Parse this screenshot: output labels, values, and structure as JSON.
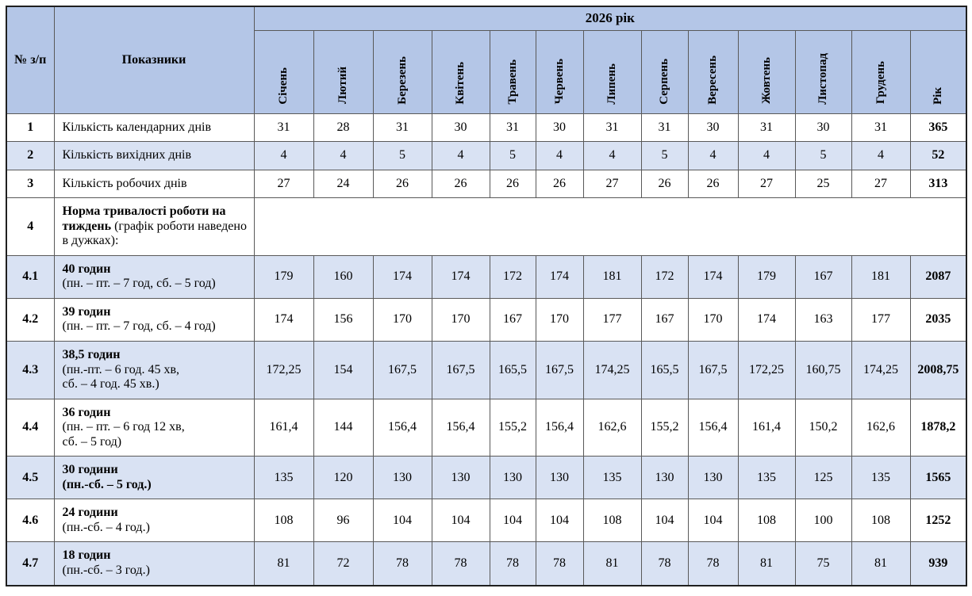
{
  "colors": {
    "header_bg": "#b4c6e7",
    "row_shade": "#d9e2f3",
    "border_color": "#595959",
    "outer_border": "#1f1f1f"
  },
  "header": {
    "num_col": "№ з/п",
    "indicators_col": "Показники",
    "year_group": "2026 рік",
    "months": [
      "Січень",
      "Лютий",
      "Березень",
      "Квітень",
      "Травень",
      "Червень",
      "Липень",
      "Серпень",
      "Вересень",
      "Жовтень",
      "Листопад",
      "Грудень"
    ],
    "year_total": "Рік"
  },
  "rows": [
    {
      "num": "1",
      "label_parts": [
        {
          "text": "Кількість календарних днів",
          "bold": false,
          "br": false
        }
      ],
      "values": [
        "31",
        "28",
        "31",
        "30",
        "31",
        "30",
        "31",
        "31",
        "30",
        "31",
        "30",
        "31"
      ],
      "total": "365",
      "shaded": false
    },
    {
      "num": "2",
      "label_parts": [
        {
          "text": "Кількість вихідних днів",
          "bold": false,
          "br": false
        }
      ],
      "values": [
        "4",
        "4",
        "5",
        "4",
        "5",
        "4",
        "4",
        "5",
        "4",
        "4",
        "5",
        "4"
      ],
      "total": "52",
      "shaded": true
    },
    {
      "num": "3",
      "label_parts": [
        {
          "text": "Кількість робочих днів",
          "bold": false,
          "br": false
        }
      ],
      "values": [
        "27",
        "24",
        "26",
        "26",
        "26",
        "26",
        "27",
        "26",
        "26",
        "27",
        "25",
        "27"
      ],
      "total": "313",
      "shaded": false
    },
    {
      "num": "4",
      "label_parts": [
        {
          "text": "Норма тривалості роботи на тиждень",
          "bold": true,
          "br": false
        },
        {
          "text": " (графік роботи наведено в дужках):",
          "bold": false,
          "br": false
        }
      ],
      "values": null,
      "total": null,
      "shaded": false
    },
    {
      "num": "4.1",
      "label_parts": [
        {
          "text": "40 годин",
          "bold": true,
          "br": false
        },
        {
          "text": "(пн. – пт. – 7 год, сб. – 5 год)",
          "bold": false,
          "br": true
        }
      ],
      "values": [
        "179",
        "160",
        "174",
        "174",
        "172",
        "174",
        "181",
        "172",
        "174",
        "179",
        "167",
        "181"
      ],
      "total": "2087",
      "shaded": true
    },
    {
      "num": "4.2",
      "label_parts": [
        {
          "text": "39 годин",
          "bold": true,
          "br": false
        },
        {
          "text": "(пн. – пт. – 7 год, сб. – 4 год)",
          "bold": false,
          "br": true
        }
      ],
      "values": [
        "174",
        "156",
        "170",
        "170",
        "167",
        "170",
        "177",
        "167",
        "170",
        "174",
        "163",
        "177"
      ],
      "total": "2035",
      "shaded": false
    },
    {
      "num": "4.3",
      "label_parts": [
        {
          "text": "38,5 годин",
          "bold": true,
          "br": false
        },
        {
          "text": "(пн.-пт. – 6 год. 45 хв,",
          "bold": false,
          "br": true
        },
        {
          "text": "сб. – 4 год. 45 хв.)",
          "bold": false,
          "br": true
        }
      ],
      "values": [
        "172,25",
        "154",
        "167,5",
        "167,5",
        "165,5",
        "167,5",
        "174,25",
        "165,5",
        "167,5",
        "172,25",
        "160,75",
        "174,25"
      ],
      "total": "2008,75",
      "shaded": true
    },
    {
      "num": "4.4",
      "label_parts": [
        {
          "text": "36 годин",
          "bold": true,
          "br": false
        },
        {
          "text": "(пн. – пт. – 6 год 12 хв,",
          "bold": false,
          "br": true
        },
        {
          "text": "сб. – 5 год)",
          "bold": false,
          "br": true
        }
      ],
      "values": [
        "161,4",
        "144",
        "156,4",
        "156,4",
        "155,2",
        "156,4",
        "162,6",
        "155,2",
        "156,4",
        "161,4",
        "150,2",
        "162,6"
      ],
      "total": "1878,2",
      "shaded": false
    },
    {
      "num": "4.5",
      "label_parts": [
        {
          "text": "30 години",
          "bold": true,
          "br": false
        },
        {
          "text": "(пн.-сб. – 5 год.)",
          "bold": true,
          "br": true
        }
      ],
      "values": [
        "135",
        "120",
        "130",
        "130",
        "130",
        "130",
        "135",
        "130",
        "130",
        "135",
        "125",
        "135"
      ],
      "total": "1565",
      "shaded": true
    },
    {
      "num": "4.6",
      "label_parts": [
        {
          "text": "24 години",
          "bold": true,
          "br": false
        },
        {
          "text": "(пн.-сб. – 4 год.)",
          "bold": false,
          "br": true
        }
      ],
      "values": [
        "108",
        "96",
        "104",
        "104",
        "104",
        "104",
        "108",
        "104",
        "104",
        "108",
        "100",
        "108"
      ],
      "total": "1252",
      "shaded": false
    },
    {
      "num": "4.7",
      "label_parts": [
        {
          "text": "18 годин",
          "bold": true,
          "br": false
        },
        {
          "text": "(пн.-сб. – 3 год.)",
          "bold": false,
          "br": true
        }
      ],
      "values": [
        "81",
        "72",
        "78",
        "78",
        "78",
        "78",
        "81",
        "78",
        "78",
        "81",
        "75",
        "81"
      ],
      "total": "939",
      "shaded": true
    }
  ]
}
